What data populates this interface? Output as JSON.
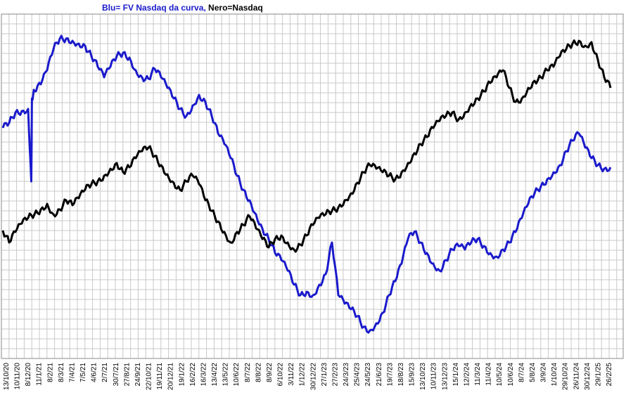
{
  "chart_data": {
    "type": "line",
    "title_parts": {
      "blue_part": "Blu= FV Nasdaq da curva,",
      "black_part": " Nero=Nasdaq"
    },
    "grid": true,
    "yaxis_labels": false,
    "x_tick_labels": [
      "13/10/20",
      "10/11/20",
      "8/12/20",
      "11/1/21",
      "8/2/21",
      "8/3/21",
      "7/4/21",
      "7/5/21",
      "4/6/21",
      "2/7/21",
      "30/7/21",
      "27/8/21",
      "24/9/21",
      "22/10/21",
      "19/11/21",
      "20/12/21",
      "19/1/22",
      "16/2/22",
      "16/3/22",
      "13/4/22",
      "13/5/22",
      "10/6/22",
      "8/7/22",
      "8/8/22",
      "8/9/22",
      "6/10/22",
      "3/11/22",
      "1/12/22",
      "30/12/22",
      "27/1/23",
      "27/2/23",
      "24/3/23",
      "25/4/23",
      "24/5/23",
      "21/6/23",
      "19/7/23",
      "18/8/23",
      "15/9/23",
      "13/10/23",
      "10/11/23",
      "13/12/23",
      "15/1/24",
      "12/2/24",
      "11/3/24",
      "11/4/24",
      "10/5/24",
      "10/6/24",
      "8/7/24",
      "5/8/24",
      "3/9/24",
      "1/10/24",
      "29/10/24",
      "26/11/24",
      "30/12/24",
      "29/1/25",
      "26/2/25"
    ],
    "series": [
      {
        "name": "FV Nasdaq da curva",
        "color": "#1a1acc",
        "points": [
          [
            0,
            182
          ],
          [
            1,
            175
          ],
          [
            2,
            160
          ],
          [
            3,
            158
          ],
          [
            4,
            155
          ],
          [
            4.5,
            258
          ],
          [
            4.6,
            140
          ],
          [
            5,
            130
          ],
          [
            6,
            120
          ],
          [
            7,
            100
          ],
          [
            8,
            70
          ],
          [
            9,
            55
          ],
          [
            10,
            55
          ],
          [
            11,
            58
          ],
          [
            12,
            62
          ],
          [
            13,
            65
          ],
          [
            14,
            80
          ],
          [
            15,
            95
          ],
          [
            16,
            110
          ],
          [
            17,
            95
          ],
          [
            18,
            80
          ],
          [
            19,
            75
          ],
          [
            20,
            82
          ],
          [
            21,
            100
          ],
          [
            22,
            110
          ],
          [
            23,
            112
          ],
          [
            24,
            98
          ],
          [
            25,
            110
          ],
          [
            26,
            125
          ],
          [
            27,
            140
          ],
          [
            28,
            155
          ],
          [
            29,
            165
          ],
          [
            30,
            150
          ],
          [
            31,
            135
          ],
          [
            32,
            145
          ],
          [
            33,
            165
          ],
          [
            34,
            190
          ],
          [
            35,
            205
          ],
          [
            36,
            225
          ],
          [
            37,
            250
          ],
          [
            38,
            270
          ],
          [
            39,
            285
          ],
          [
            40,
            305
          ],
          [
            41,
            325
          ],
          [
            42,
            340
          ],
          [
            43,
            360
          ],
          [
            44,
            370
          ],
          [
            45,
            385
          ],
          [
            46,
            405
          ],
          [
            47,
            420
          ],
          [
            48,
            415
          ],
          [
            49,
            420
          ],
          [
            50,
            405
          ],
          [
            51,
            390
          ],
          [
            52,
            345
          ],
          [
            53,
            420
          ],
          [
            54,
            432
          ],
          [
            55,
            440
          ],
          [
            56,
            450
          ],
          [
            57,
            465
          ],
          [
            58,
            470
          ],
          [
            59,
            460
          ],
          [
            60,
            445
          ],
          [
            61,
            420
          ],
          [
            62,
            400
          ],
          [
            63,
            375
          ],
          [
            64,
            340
          ],
          [
            65,
            330
          ],
          [
            66,
            345
          ],
          [
            67,
            360
          ],
          [
            68,
            375
          ],
          [
            69,
            385
          ],
          [
            70,
            370
          ],
          [
            71,
            355
          ],
          [
            72,
            350
          ],
          [
            73,
            355
          ],
          [
            74,
            345
          ],
          [
            75,
            340
          ],
          [
            76,
            350
          ],
          [
            77,
            360
          ],
          [
            78,
            365
          ],
          [
            79,
            355
          ],
          [
            80,
            345
          ],
          [
            81,
            330
          ],
          [
            82,
            310
          ],
          [
            83,
            290
          ],
          [
            84,
            275
          ],
          [
            85,
            265
          ],
          [
            86,
            255
          ],
          [
            87,
            245
          ],
          [
            88,
            235
          ],
          [
            89,
            215
          ],
          [
            90,
            200
          ],
          [
            91,
            190
          ],
          [
            92,
            210
          ],
          [
            93,
            225
          ],
          [
            94,
            235
          ],
          [
            95,
            240
          ],
          [
            96,
            238
          ]
        ]
      },
      {
        "name": "Nasdaq",
        "color": "#000000",
        "points": [
          [
            0,
            328
          ],
          [
            1,
            345
          ],
          [
            2,
            330
          ],
          [
            3,
            318
          ],
          [
            4,
            310
          ],
          [
            5,
            305
          ],
          [
            6,
            298
          ],
          [
            7,
            290
          ],
          [
            8,
            305
          ],
          [
            9,
            298
          ],
          [
            10,
            285
          ],
          [
            11,
            292
          ],
          [
            12,
            282
          ],
          [
            13,
            270
          ],
          [
            14,
            262
          ],
          [
            15,
            258
          ],
          [
            16,
            250
          ],
          [
            17,
            240
          ],
          [
            18,
            232
          ],
          [
            19,
            245
          ],
          [
            20,
            238
          ],
          [
            21,
            225
          ],
          [
            22,
            215
          ],
          [
            23,
            210
          ],
          [
            24,
            222
          ],
          [
            25,
            235
          ],
          [
            26,
            248
          ],
          [
            27,
            260
          ],
          [
            28,
            270
          ],
          [
            29,
            258
          ],
          [
            30,
            250
          ],
          [
            31,
            262
          ],
          [
            32,
            285
          ],
          [
            33,
            300
          ],
          [
            34,
            315
          ],
          [
            35,
            330
          ],
          [
            36,
            345
          ],
          [
            37,
            330
          ],
          [
            38,
            320
          ],
          [
            39,
            308
          ],
          [
            40,
            325
          ],
          [
            41,
            340
          ],
          [
            42,
            352
          ],
          [
            43,
            340
          ],
          [
            44,
            335
          ],
          [
            45,
            345
          ],
          [
            46,
            355
          ],
          [
            47,
            348
          ],
          [
            48,
            335
          ],
          [
            49,
            320
          ],
          [
            50,
            310
          ],
          [
            51,
            305
          ],
          [
            52,
            300
          ],
          [
            53,
            295
          ],
          [
            54,
            285
          ],
          [
            55,
            275
          ],
          [
            56,
            260
          ],
          [
            57,
            245
          ],
          [
            58,
            235
          ],
          [
            59,
            240
          ],
          [
            60,
            245
          ],
          [
            61,
            250
          ],
          [
            62,
            255
          ],
          [
            63,
            245
          ],
          [
            64,
            232
          ],
          [
            65,
            218
          ],
          [
            66,
            205
          ],
          [
            67,
            195
          ],
          [
            68,
            182
          ],
          [
            69,
            172
          ],
          [
            70,
            165
          ],
          [
            71,
            160
          ],
          [
            72,
            170
          ],
          [
            73,
            160
          ],
          [
            74,
            148
          ],
          [
            75,
            140
          ],
          [
            76,
            130
          ],
          [
            77,
            118
          ],
          [
            78,
            110
          ],
          [
            79,
            100
          ],
          [
            80,
            125
          ],
          [
            81,
            145
          ],
          [
            82,
            140
          ],
          [
            83,
            125
          ],
          [
            84,
            115
          ],
          [
            85,
            110
          ],
          [
            86,
            100
          ],
          [
            87,
            95
          ],
          [
            88,
            80
          ],
          [
            89,
            70
          ],
          [
            90,
            62
          ],
          [
            91,
            58
          ],
          [
            92,
            65
          ],
          [
            93,
            60
          ],
          [
            94,
            85
          ],
          [
            95,
            110
          ],
          [
            96,
            125
          ]
        ]
      }
    ]
  }
}
